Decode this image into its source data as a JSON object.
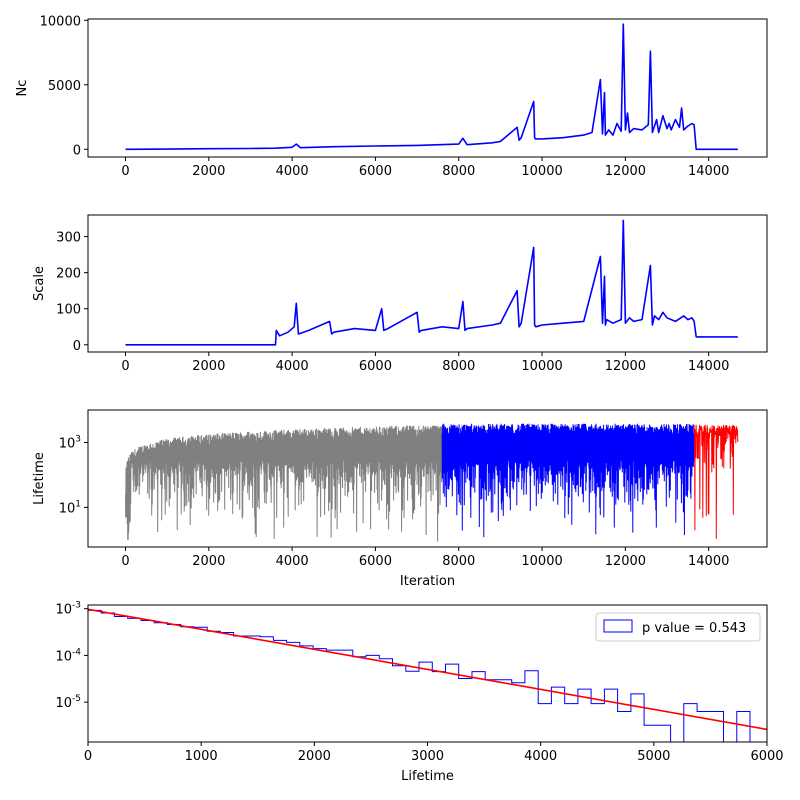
{
  "chart_data": [
    {
      "type": "line",
      "title": "",
      "xlabel": "",
      "ylabel": "Nc",
      "xlim": [
        -900,
        15400
      ],
      "ylim": [
        -600,
        10100
      ],
      "xticks": [
        0,
        2000,
        4000,
        6000,
        8000,
        10000,
        12000,
        14000
      ],
      "xtick_labels": [
        "0",
        "2000",
        "4000",
        "6000",
        "8000",
        "10000",
        "12000",
        "14000"
      ],
      "yticks": [
        0,
        5000,
        10000
      ],
      "ytick_labels": [
        "0",
        "5000",
        "10000"
      ],
      "grid": false,
      "colors": {
        "line": "#0000ff"
      },
      "series": [
        {
          "color": "#0000ff",
          "x": [
            0,
            1000,
            2000,
            3000,
            3600,
            4000,
            4100,
            4200,
            5000,
            6000,
            7000,
            8000,
            8100,
            8200,
            8800,
            9000,
            9400,
            9450,
            9500,
            9800,
            9820,
            9840,
            10000,
            10500,
            11000,
            11200,
            11400,
            11450,
            11500,
            11520,
            11600,
            11700,
            11800,
            11900,
            11950,
            12000,
            12050,
            12100,
            12200,
            12400,
            12550,
            12600,
            12650,
            12700,
            12750,
            12800,
            12900,
            13000,
            13050,
            13100,
            13200,
            13300,
            13350,
            13400,
            13500,
            13600,
            13650,
            13700,
            14000,
            14700
          ],
          "y": [
            0,
            10,
            40,
            60,
            80,
            150,
            400,
            120,
            200,
            250,
            300,
            400,
            850,
            350,
            500,
            600,
            1700,
            700,
            900,
            3700,
            900,
            800,
            800,
            900,
            1100,
            1300,
            5400,
            1200,
            4400,
            1100,
            1500,
            1100,
            2000,
            1400,
            9700,
            1500,
            2800,
            1300,
            1600,
            1500,
            1900,
            7600,
            1300,
            1800,
            2300,
            1300,
            2600,
            1600,
            2000,
            1500,
            2300,
            1700,
            3200,
            1500,
            1800,
            2000,
            1900,
            0,
            0,
            0
          ]
        }
      ]
    },
    {
      "type": "line",
      "title": "",
      "xlabel": "",
      "ylabel": "Scale",
      "xlim": [
        -900,
        15400
      ],
      "ylim": [
        -20,
        360
      ],
      "xticks": [
        0,
        2000,
        4000,
        6000,
        8000,
        10000,
        12000,
        14000
      ],
      "xtick_labels": [
        "0",
        "2000",
        "4000",
        "6000",
        "8000",
        "10000",
        "12000",
        "14000"
      ],
      "yticks": [
        0,
        100,
        200,
        300
      ],
      "ytick_labels": [
        "0",
        "100",
        "200",
        "300"
      ],
      "grid": false,
      "colors": {
        "line": "#0000ff"
      },
      "series": [
        {
          "color": "#0000ff",
          "x": [
            0,
            3600,
            3620,
            3700,
            3900,
            4050,
            4100,
            4150,
            4400,
            4900,
            4950,
            5000,
            5500,
            6000,
            6150,
            6200,
            6300,
            7000,
            7050,
            7100,
            7600,
            8000,
            8100,
            8150,
            8200,
            8800,
            9000,
            9400,
            9450,
            9500,
            9800,
            9820,
            9850,
            10000,
            10500,
            11000,
            11400,
            11450,
            11500,
            11520,
            11550,
            11700,
            11900,
            11950,
            12000,
            12100,
            12200,
            12400,
            12600,
            12650,
            12700,
            12800,
            12900,
            13000,
            13200,
            13400,
            13500,
            13600,
            13650,
            13700,
            14000,
            14700
          ],
          "y": [
            0,
            0,
            40,
            25,
            35,
            50,
            115,
            30,
            40,
            65,
            30,
            35,
            45,
            40,
            100,
            40,
            45,
            90,
            35,
            40,
            50,
            45,
            120,
            40,
            45,
            55,
            60,
            150,
            50,
            60,
            270,
            55,
            50,
            55,
            60,
            65,
            245,
            60,
            190,
            55,
            70,
            60,
            70,
            345,
            60,
            75,
            65,
            70,
            220,
            55,
            80,
            70,
            90,
            75,
            65,
            80,
            70,
            75,
            65,
            22,
            22,
            22
          ]
        }
      ]
    },
    {
      "type": "line",
      "title": "",
      "xlabel": "Iteration",
      "ylabel": "Lifetime",
      "xlim": [
        -900,
        15400
      ],
      "yscale": "log",
      "ylim": [
        0.6,
        10000
      ],
      "xticks": [
        0,
        2000,
        4000,
        6000,
        8000,
        10000,
        12000,
        14000
      ],
      "xtick_labels": [
        "0",
        "2000",
        "4000",
        "6000",
        "8000",
        "10000",
        "12000",
        "14000"
      ],
      "yticks": [
        10,
        1000
      ],
      "ytick_labels": [
        "10^1",
        "10^3"
      ],
      "grid": false,
      "colors": {
        "burnin": "#808080",
        "main": "#0000ff",
        "tail": "#ff0000"
      },
      "segments": [
        {
          "name": "",
          "color": "#808080",
          "x_start": 0,
          "x_end": 7600
        },
        {
          "name": "",
          "color": "#0000ff",
          "x_start": 7600,
          "x_end": 13650
        },
        {
          "name": "",
          "color": "#ff0000",
          "x_start": 13650,
          "x_end": 14700
        }
      ]
    },
    {
      "type": "histogram",
      "title": "",
      "xlabel": "Lifetime",
      "ylabel": "",
      "xlim": [
        0,
        6000
      ],
      "yscale": "log",
      "ylim": [
        1.4e-06,
        0.0012
      ],
      "xticks": [
        0,
        1000,
        2000,
        3000,
        4000,
        5000,
        6000
      ],
      "xtick_labels": [
        "0",
        "1000",
        "2000",
        "3000",
        "4000",
        "5000",
        "6000"
      ],
      "yticks": [
        1e-05,
        0.0001,
        0.001
      ],
      "ytick_labels": [
        "10^-5",
        "10^-4",
        "10^-3"
      ],
      "grid": false,
      "legend": {
        "placement": "top-right",
        "label": "p value = 0.543"
      },
      "colors": {
        "hist": "#0000ff",
        "fit": "#ff0000"
      },
      "bin_edges": [
        0,
        117,
        234,
        351,
        468,
        585,
        702,
        819,
        936,
        1053,
        1170,
        1287,
        1404,
        1521,
        1638,
        1755,
        1872,
        1989,
        2106,
        2223,
        2340,
        2457,
        2574,
        2691,
        2808,
        2925,
        3042,
        3159,
        3276,
        3393,
        3510,
        3627,
        3744,
        3861,
        3978,
        4095,
        4212,
        4329,
        4446,
        4563,
        4680,
        4797,
        4914,
        5031,
        5148,
        5265,
        5382,
        5499,
        5616,
        5733,
        5850,
        6000
      ],
      "counts": [
        0.00092,
        0.00081,
        0.00068,
        0.00062,
        0.00056,
        0.0005,
        0.00046,
        0.00041,
        0.0004,
        0.00033,
        0.00031,
        0.00026,
        0.00026,
        0.00025,
        0.00021,
        0.00019,
        0.00016,
        0.00014,
        0.00013,
        0.00013,
        9.4e-05,
        0.0001,
        8.5e-05,
        6e-05,
        4.6e-05,
        7.2e-05,
        4.5e-05,
        6.5e-05,
        3.2e-05,
        4.5e-05,
        3e-05,
        3e-05,
        2.6e-05,
        4.7e-05,
        9.3e-06,
        2.1e-05,
        9.3e-06,
        1.9e-05,
        9.3e-06,
        1.9e-05,
        6.3e-06,
        1.5e-05,
        3.2e-06,
        3.2e-06,
        1.4e-06,
        9.3e-06,
        6.3e-06,
        6.3e-06,
        1.4e-06,
        6.3e-06,
        1.4e-06
      ],
      "fit": {
        "x": [
          0,
          6000
        ],
        "y": [
          0.00097,
          2.6e-06
        ]
      }
    }
  ]
}
